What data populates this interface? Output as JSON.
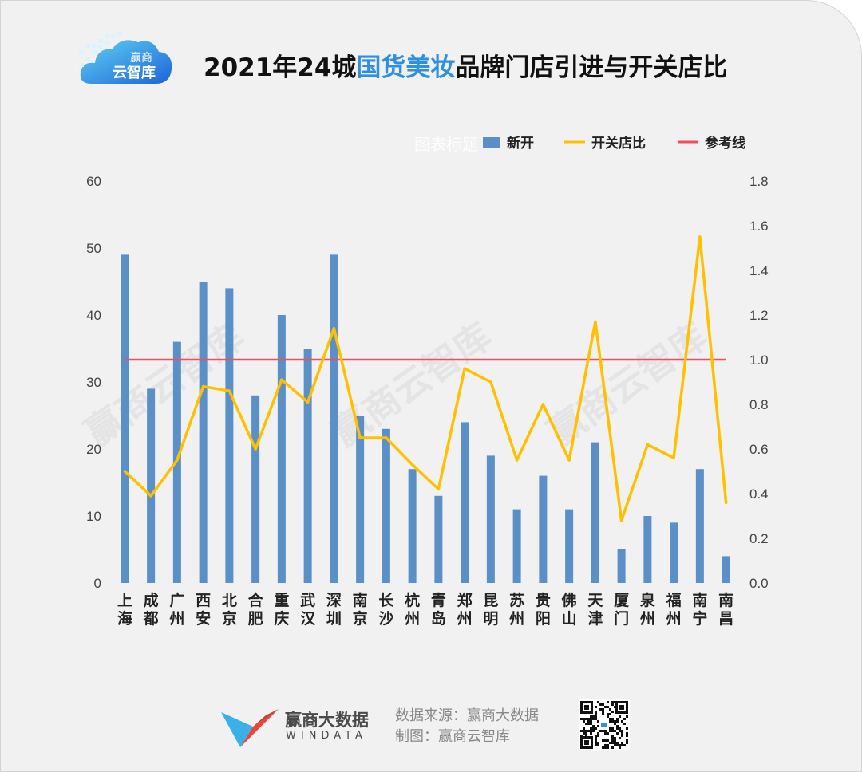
{
  "header": {
    "title_pre": "2021年24城",
    "title_highlight": "国货美妆",
    "title_post": "品牌门店引进与开关店比",
    "logo_line1": "赢商",
    "logo_line2": "云智库"
  },
  "chart_watermark_title": "图表标题",
  "watermark_text": "赢商云智库",
  "chart_data": {
    "type": "bar",
    "categories": [
      "上海",
      "成都",
      "广州",
      "西安",
      "北京",
      "合肥",
      "重庆",
      "武汉",
      "深圳",
      "南京",
      "长沙",
      "杭州",
      "青岛",
      "郑州",
      "昆明",
      "苏州",
      "贵阳",
      "佛山",
      "天津",
      "厦门",
      "泉州",
      "福州",
      "南宁",
      "南昌"
    ],
    "series": [
      {
        "name": "新开",
        "type": "bar",
        "axis": "left",
        "color": "#5b8fc7",
        "values": [
          49,
          29,
          36,
          45,
          44,
          28,
          40,
          35,
          49,
          25,
          23,
          17,
          13,
          24,
          19,
          11,
          16,
          11,
          21,
          5,
          10,
          9,
          17,
          4
        ]
      },
      {
        "name": "开关店比",
        "type": "line",
        "axis": "right",
        "color": "#ffc000",
        "values": [
          0.5,
          0.39,
          0.55,
          0.88,
          0.86,
          0.6,
          0.91,
          0.81,
          1.14,
          0.65,
          0.65,
          0.53,
          0.42,
          0.96,
          0.9,
          0.55,
          0.8,
          0.55,
          1.17,
          0.28,
          0.62,
          0.56,
          1.55,
          0.36
        ]
      },
      {
        "name": "参考线",
        "type": "reference",
        "axis": "right",
        "color": "#f0505a",
        "value": 1.0
      }
    ],
    "y_left": {
      "range": [
        0,
        60
      ],
      "ticks": [
        "0",
        "10",
        "20",
        "30",
        "40",
        "50",
        "60"
      ]
    },
    "y_right": {
      "range": [
        0,
        1.8
      ],
      "ticks": [
        "0.0",
        "0.2",
        "0.4",
        "0.6",
        "0.8",
        "1.0",
        "1.2",
        "1.4",
        "1.6",
        "1.8"
      ]
    },
    "legend_position": "top-right",
    "grid": false
  },
  "footer": {
    "brand_cn": "赢商大数据",
    "brand_en": "WINDATA",
    "source_line1": "数据来源：赢商大数据",
    "source_line2": "制图：赢商云智库"
  }
}
